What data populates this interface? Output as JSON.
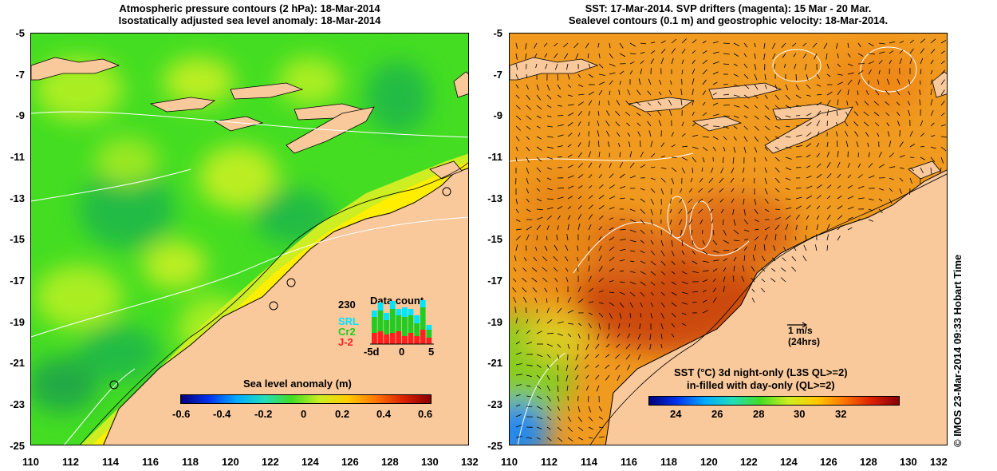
{
  "left_panel": {
    "title_line1": "Atmospheric pressure contours (2 hPa): 18-Mar-2014",
    "title_line2": "Isostatically adjusted sea level anomaly: 18-Mar-2014",
    "y_ticks": [
      "-5",
      "-7",
      "-9",
      "-11",
      "-13",
      "-15",
      "-17",
      "-19",
      "-21",
      "-23",
      "-25"
    ],
    "x_ticks": [
      "110",
      "112",
      "114",
      "116",
      "118",
      "120",
      "122",
      "124",
      "126",
      "128",
      "130",
      "132"
    ],
    "colorbar": {
      "label": "Sea level anomaly (m)",
      "ticks": [
        "-0.6",
        "-0.4",
        "-0.2",
        "0",
        "0.2",
        "0.4",
        "0.6"
      ]
    },
    "data_count": {
      "title": "Data count",
      "max_label": "230",
      "satellites": [
        "SRL",
        "Cr2",
        "J-2"
      ],
      "sat_colors": [
        "#00e5ff",
        "#22cc22",
        "#ff2020"
      ],
      "x_ticks": [
        "-5d",
        "0",
        "5"
      ]
    }
  },
  "right_panel": {
    "title_line1": "SST: 17-Mar-2014. SVP drifters (magenta): 15 Mar - 20 Mar.",
    "title_line2": "Sealevel contours (0.1 m) and geostrophic velocity: 18-Mar-2014.",
    "y_ticks": [
      "-5",
      "-7",
      "-9",
      "-11",
      "-13",
      "-15",
      "-17",
      "-19",
      "-21",
      "-23",
      "-25"
    ],
    "x_ticks": [
      "110",
      "112",
      "114",
      "116",
      "118",
      "120",
      "122",
      "124",
      "126",
      "128",
      "130",
      "132"
    ],
    "velocity_scale": {
      "label": "1 m/s",
      "sublabel": "(24hrs)"
    },
    "colorbar": {
      "label_line1": "SST (°C)  3d night-only (L3S QL>=2)",
      "label_line2": "in-filled with day-only (QL>=2)",
      "ticks": [
        "24",
        "26",
        "28",
        "30",
        "32"
      ]
    }
  },
  "credit": "© IMOS 23-Mar-2014 09:33 Hobart Time",
  "colors": {
    "land": "#f9c89b",
    "sla_base": "#44dd22",
    "sst_base": "#f09a20"
  }
}
